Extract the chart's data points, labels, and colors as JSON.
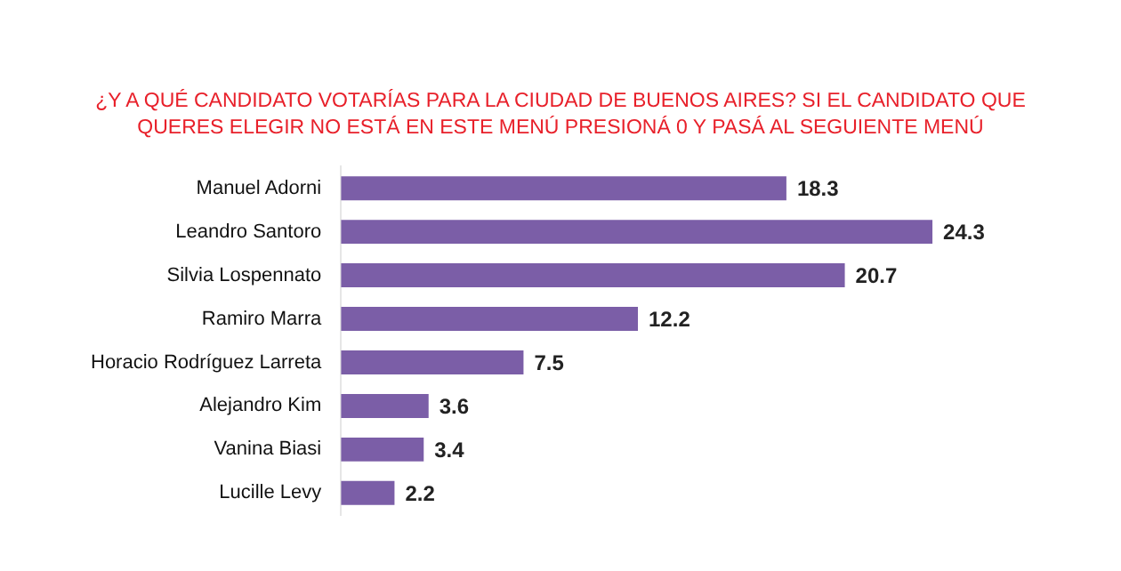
{
  "chart_data": {
    "type": "bar",
    "orientation": "horizontal",
    "title": "¿Y A QUÉ CANDIDATO VOTARÍAS PARA LA CIUDAD DE BUENOS AIRES? SI EL CANDIDATO QUE QUERES ELEGIR NO ESTÁ EN ESTE MENÚ PRESIONÁ 0 Y PASÁ AL SEGUIENTE MENÚ",
    "categories": [
      "Manuel Adorni",
      "Leandro Santoro",
      "Silvia Lospennato",
      "Ramiro Marra",
      "Horacio Rodríguez Larreta",
      "Alejandro Kim",
      "Vanina Biasi",
      "Lucille Levy"
    ],
    "values": [
      18.3,
      24.3,
      20.7,
      12.2,
      7.5,
      3.6,
      3.4,
      2.2
    ],
    "color": "#7b5ea7",
    "data_labels": true,
    "legend": false
  }
}
